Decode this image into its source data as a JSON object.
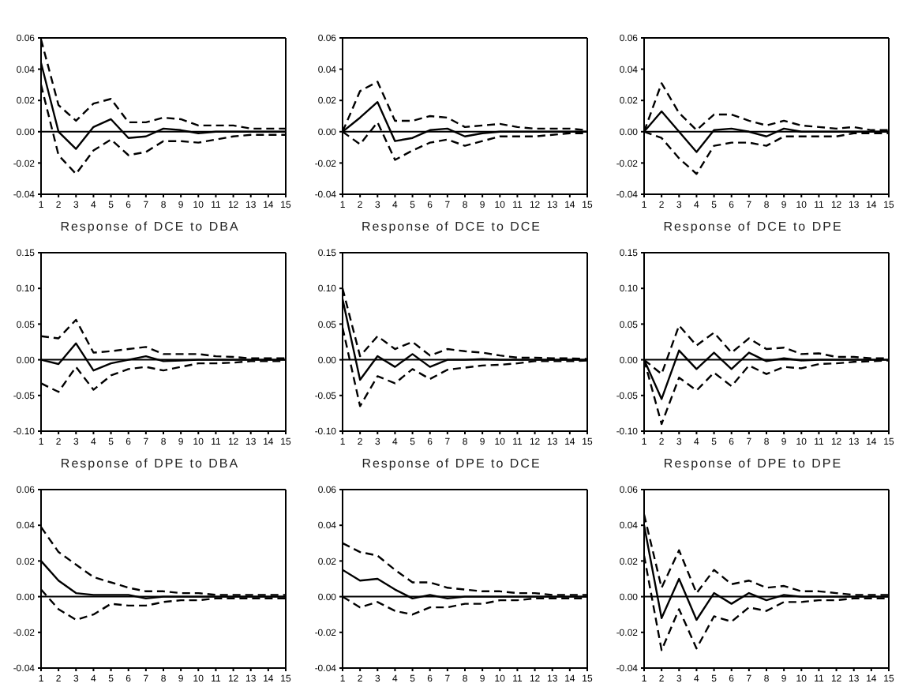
{
  "chart_data": [
    {
      "type": "line",
      "x": [
        1,
        2,
        3,
        4,
        5,
        6,
        7,
        8,
        9,
        10,
        11,
        12,
        13,
        14,
        15
      ],
      "xlim": [
        1,
        15
      ],
      "xticks": [
        1,
        2,
        3,
        4,
        5,
        6,
        7,
        8,
        9,
        10,
        11,
        12,
        13,
        14,
        15
      ],
      "ylim": [
        -0.04,
        0.06
      ],
      "yticks": [
        -0.04,
        -0.02,
        {
          "value": 0,
          "label": "0.00"
        },
        0.02,
        0.04,
        0.06
      ],
      "grid": false,
      "legend": false,
      "ref_lines": [
        {
          "axis": "y",
          "value": 0,
          "color": "#000000"
        }
      ],
      "series": [
        {
          "color": "#000000",
          "line_style": "solid",
          "values": [
            0.044,
            0.0,
            -0.011,
            0.003,
            0.008,
            -0.004,
            -0.003,
            0.002,
            0.001,
            -0.001,
            0,
            0,
            0,
            0,
            0
          ]
        },
        {
          "color": "#000000",
          "line_style": "dashed",
          "values": [
            0.059,
            0.017,
            0.007,
            0.018,
            0.021,
            0.006,
            0.006,
            0.009,
            0.008,
            0.004,
            0.004,
            0.004,
            0.002,
            0.002,
            0.002
          ]
        },
        {
          "color": "#000000",
          "line_style": "dashed",
          "values": [
            0.03,
            -0.015,
            -0.027,
            -0.012,
            -0.005,
            -0.015,
            -0.013,
            -0.006,
            -0.006,
            -0.007,
            -0.005,
            -0.003,
            -0.002,
            -0.002,
            -0.002
          ]
        }
      ]
    },
    {
      "type": "line",
      "x": [
        1,
        2,
        3,
        4,
        5,
        6,
        7,
        8,
        9,
        10,
        11,
        12,
        13,
        14,
        15
      ],
      "xlim": [
        1,
        15
      ],
      "xticks": [
        1,
        2,
        3,
        4,
        5,
        6,
        7,
        8,
        9,
        10,
        11,
        12,
        13,
        14,
        15
      ],
      "ylim": [
        -0.04,
        0.06
      ],
      "yticks": [
        -0.04,
        -0.02,
        {
          "value": 0,
          "label": "0.00"
        },
        0.02,
        0.04,
        0.06
      ],
      "grid": false,
      "legend": false,
      "ref_lines": [
        {
          "axis": "y",
          "value": 0,
          "color": "#000000"
        }
      ],
      "series": [
        {
          "color": "#000000",
          "line_style": "solid",
          "values": [
            0,
            0.009,
            0.019,
            -0.006,
            -0.004,
            0.001,
            0.002,
            -0.003,
            -0.001,
            0,
            0,
            0,
            0,
            0,
            0
          ]
        },
        {
          "color": "#000000",
          "line_style": "dashed",
          "values": [
            0,
            0.026,
            0.032,
            0.007,
            0.007,
            0.01,
            0.009,
            0.003,
            0.004,
            0.005,
            0.003,
            0.002,
            0.002,
            0.002,
            0.001
          ]
        },
        {
          "color": "#000000",
          "line_style": "dashed",
          "values": [
            0,
            -0.008,
            0.006,
            -0.018,
            -0.012,
            -0.007,
            -0.005,
            -0.009,
            -0.006,
            -0.003,
            -0.003,
            -0.003,
            -0.002,
            -0.001,
            -0.001
          ]
        }
      ]
    },
    {
      "type": "line",
      "x": [
        1,
        2,
        3,
        4,
        5,
        6,
        7,
        8,
        9,
        10,
        11,
        12,
        13,
        14,
        15
      ],
      "xlim": [
        1,
        15
      ],
      "xticks": [
        1,
        2,
        3,
        4,
        5,
        6,
        7,
        8,
        9,
        10,
        11,
        12,
        13,
        14,
        15
      ],
      "ylim": [
        -0.04,
        0.06
      ],
      "yticks": [
        -0.04,
        -0.02,
        {
          "value": 0,
          "label": "0.00"
        },
        0.02,
        0.04,
        0.06
      ],
      "grid": false,
      "legend": false,
      "ref_lines": [
        {
          "axis": "y",
          "value": 0,
          "color": "#000000"
        }
      ],
      "series": [
        {
          "color": "#000000",
          "line_style": "solid",
          "values": [
            0,
            0.013,
            0,
            -0.013,
            0.001,
            0.002,
            0,
            -0.003,
            0.002,
            0,
            0,
            0,
            0,
            0,
            0
          ]
        },
        {
          "color": "#000000",
          "line_style": "dashed",
          "values": [
            0,
            0.031,
            0.012,
            0.001,
            0.011,
            0.011,
            0.007,
            0.004,
            0.007,
            0.004,
            0.003,
            0.002,
            0.003,
            0.001,
            0.001
          ]
        },
        {
          "color": "#000000",
          "line_style": "dashed",
          "values": [
            0,
            -0.004,
            -0.017,
            -0.027,
            -0.009,
            -0.007,
            -0.007,
            -0.009,
            -0.003,
            -0.003,
            -0.003,
            -0.003,
            -0.001,
            -0.001,
            -0.001
          ]
        }
      ]
    },
    {
      "type": "line",
      "title": "Response of DCE to DBA",
      "x": [
        1,
        2,
        3,
        4,
        5,
        6,
        7,
        8,
        9,
        10,
        11,
        12,
        13,
        14,
        15
      ],
      "xlim": [
        1,
        15
      ],
      "xticks": [
        1,
        2,
        3,
        4,
        5,
        6,
        7,
        8,
        9,
        10,
        11,
        12,
        13,
        14,
        15
      ],
      "ylim": [
        -0.1,
        0.15
      ],
      "yticks": [
        {
          "value": -0.1,
          "label": "-0.10"
        },
        -0.05,
        {
          "value": 0,
          "label": "0.00"
        },
        0.05,
        {
          "value": 0.1,
          "label": "0.10"
        },
        0.15
      ],
      "grid": false,
      "legend": false,
      "ref_lines": [
        {
          "axis": "y",
          "value": 0,
          "color": "#000000"
        }
      ],
      "series": [
        {
          "color": "#000000",
          "line_style": "solid",
          "values": [
            0,
            -0.006,
            0.023,
            -0.015,
            -0.005,
            0,
            0.005,
            -0.002,
            -0.001,
            0,
            0,
            0,
            0,
            0,
            0
          ]
        },
        {
          "color": "#000000",
          "line_style": "dashed",
          "values": [
            0.033,
            0.03,
            0.056,
            0.01,
            0.012,
            0.015,
            0.018,
            0.008,
            0.008,
            0.008,
            0.005,
            0.004,
            0.002,
            0.002,
            0.002
          ]
        },
        {
          "color": "#000000",
          "line_style": "dashed",
          "values": [
            -0.033,
            -0.045,
            -0.01,
            -0.042,
            -0.022,
            -0.013,
            -0.01,
            -0.015,
            -0.01,
            -0.005,
            -0.005,
            -0.004,
            -0.002,
            -0.002,
            -0.002
          ]
        }
      ]
    },
    {
      "type": "line",
      "title": "Response of DCE to DCE",
      "x": [
        1,
        2,
        3,
        4,
        5,
        6,
        7,
        8,
        9,
        10,
        11,
        12,
        13,
        14,
        15
      ],
      "xlim": [
        1,
        15
      ],
      "xticks": [
        1,
        2,
        3,
        4,
        5,
        6,
        7,
        8,
        9,
        10,
        11,
        12,
        13,
        14,
        15
      ],
      "ylim": [
        -0.1,
        0.15
      ],
      "yticks": [
        {
          "value": -0.1,
          "label": "-0.10"
        },
        -0.05,
        {
          "value": 0,
          "label": "0.00"
        },
        0.05,
        {
          "value": 0.1,
          "label": "0.10"
        },
        0.15
      ],
      "grid": false,
      "legend": false,
      "ref_lines": [
        {
          "axis": "y",
          "value": 0,
          "color": "#000000"
        }
      ],
      "series": [
        {
          "color": "#000000",
          "line_style": "solid",
          "values": [
            0.085,
            -0.028,
            0.005,
            -0.01,
            0.008,
            -0.01,
            0,
            0,
            0.001,
            0,
            0,
            0,
            0,
            0,
            0
          ]
        },
        {
          "color": "#000000",
          "line_style": "dashed",
          "values": [
            0.1,
            0.005,
            0.033,
            0.015,
            0.025,
            0.006,
            0.015,
            0.012,
            0.01,
            0.006,
            0.003,
            0.003,
            0.002,
            0.002,
            0.001
          ]
        },
        {
          "color": "#000000",
          "line_style": "dashed",
          "values": [
            0.045,
            -0.065,
            -0.023,
            -0.033,
            -0.013,
            -0.027,
            -0.014,
            -0.011,
            -0.008,
            -0.007,
            -0.005,
            -0.002,
            -0.002,
            -0.002,
            -0.001
          ]
        }
      ]
    },
    {
      "type": "line",
      "title": "Response of DCE to DPE",
      "x": [
        1,
        2,
        3,
        4,
        5,
        6,
        7,
        8,
        9,
        10,
        11,
        12,
        13,
        14,
        15
      ],
      "xlim": [
        1,
        15
      ],
      "xticks": [
        1,
        2,
        3,
        4,
        5,
        6,
        7,
        8,
        9,
        10,
        11,
        12,
        13,
        14,
        15
      ],
      "ylim": [
        -0.1,
        0.15
      ],
      "yticks": [
        {
          "value": -0.1,
          "label": "-0.10"
        },
        -0.05,
        {
          "value": 0,
          "label": "0.00"
        },
        0.05,
        {
          "value": 0.1,
          "label": "0.10"
        },
        0.15
      ],
      "grid": false,
      "legend": false,
      "ref_lines": [
        {
          "axis": "y",
          "value": 0,
          "color": "#000000"
        }
      ],
      "series": [
        {
          "color": "#000000",
          "line_style": "solid",
          "values": [
            0,
            -0.055,
            0.013,
            -0.013,
            0.01,
            -0.013,
            0.01,
            -0.002,
            0.002,
            -0.001,
            0,
            0,
            0,
            0,
            0
          ]
        },
        {
          "color": "#000000",
          "line_style": "dashed",
          "values": [
            0,
            -0.02,
            0.048,
            0.02,
            0.038,
            0.01,
            0.03,
            0.015,
            0.017,
            0.008,
            0.009,
            0.004,
            0.004,
            0.002,
            0.002
          ]
        },
        {
          "color": "#000000",
          "line_style": "dashed",
          "values": [
            0,
            -0.09,
            -0.025,
            -0.043,
            -0.018,
            -0.037,
            -0.008,
            -0.02,
            -0.01,
            -0.012,
            -0.006,
            -0.005,
            -0.003,
            -0.002,
            -0.001
          ]
        }
      ]
    },
    {
      "type": "line",
      "title": "Response of DPE to DBA",
      "x": [
        1,
        2,
        3,
        4,
        5,
        6,
        7,
        8,
        9,
        10,
        11,
        12,
        13,
        14,
        15
      ],
      "xlim": [
        1,
        15
      ],
      "xticks": [
        1,
        2,
        3,
        4,
        5,
        6,
        7,
        8,
        9,
        10,
        11,
        12,
        13,
        14,
        15
      ],
      "ylim": [
        -0.04,
        0.06
      ],
      "yticks": [
        -0.04,
        -0.02,
        {
          "value": 0,
          "label": "0.00"
        },
        0.02,
        0.04,
        0.06
      ],
      "grid": false,
      "legend": false,
      "ref_lines": [
        {
          "axis": "y",
          "value": 0,
          "color": "#000000"
        }
      ],
      "series": [
        {
          "color": "#000000",
          "line_style": "solid",
          "values": [
            0.02,
            0.009,
            0.002,
            0.001,
            0.001,
            0.001,
            -0.001,
            0,
            0,
            0,
            0,
            0,
            0,
            0,
            0
          ]
        },
        {
          "color": "#000000",
          "line_style": "dashed",
          "values": [
            0.039,
            0.025,
            0.018,
            0.011,
            0.008,
            0.005,
            0.003,
            0.003,
            0.002,
            0.002,
            0.001,
            0.001,
            0.001,
            0.001,
            0.001
          ]
        },
        {
          "color": "#000000",
          "line_style": "dashed",
          "values": [
            0.004,
            -0.007,
            -0.013,
            -0.01,
            -0.004,
            -0.005,
            -0.005,
            -0.003,
            -0.002,
            -0.002,
            -0.001,
            -0.001,
            -0.001,
            -0.001,
            -0.001
          ]
        }
      ]
    },
    {
      "type": "line",
      "title": "Response of DPE to DCE",
      "x": [
        1,
        2,
        3,
        4,
        5,
        6,
        7,
        8,
        9,
        10,
        11,
        12,
        13,
        14,
        15
      ],
      "xlim": [
        1,
        15
      ],
      "xticks": [
        1,
        2,
        3,
        4,
        5,
        6,
        7,
        8,
        9,
        10,
        11,
        12,
        13,
        14,
        15
      ],
      "ylim": [
        -0.04,
        0.06
      ],
      "yticks": [
        -0.04,
        -0.02,
        {
          "value": 0,
          "label": "0.00"
        },
        0.02,
        0.04,
        0.06
      ],
      "grid": false,
      "legend": false,
      "ref_lines": [
        {
          "axis": "y",
          "value": 0,
          "color": "#000000"
        }
      ],
      "series": [
        {
          "color": "#000000",
          "line_style": "solid",
          "values": [
            0.015,
            0.009,
            0.01,
            0.004,
            -0.001,
            0.001,
            -0.001,
            0,
            0,
            0,
            0,
            0,
            0,
            0,
            0
          ]
        },
        {
          "color": "#000000",
          "line_style": "dashed",
          "values": [
            0.03,
            0.025,
            0.023,
            0.015,
            0.008,
            0.008,
            0.005,
            0.004,
            0.003,
            0.003,
            0.002,
            0.002,
            0.001,
            0.001,
            0.001
          ]
        },
        {
          "color": "#000000",
          "line_style": "dashed",
          "values": [
            0,
            -0.006,
            -0.003,
            -0.008,
            -0.01,
            -0.006,
            -0.006,
            -0.004,
            -0.004,
            -0.002,
            -0.002,
            -0.001,
            -0.001,
            -0.001,
            -0.001
          ]
        }
      ]
    },
    {
      "type": "line",
      "title": "Response of DPE to DPE",
      "x": [
        1,
        2,
        3,
        4,
        5,
        6,
        7,
        8,
        9,
        10,
        11,
        12,
        13,
        14,
        15
      ],
      "xlim": [
        1,
        15
      ],
      "xticks": [
        1,
        2,
        3,
        4,
        5,
        6,
        7,
        8,
        9,
        10,
        11,
        12,
        13,
        14,
        15
      ],
      "ylim": [
        -0.04,
        0.06
      ],
      "yticks": [
        -0.04,
        -0.02,
        {
          "value": 0,
          "label": "0.00"
        },
        0.02,
        0.04,
        0.06
      ],
      "grid": false,
      "legend": false,
      "ref_lines": [
        {
          "axis": "y",
          "value": 0,
          "color": "#000000"
        }
      ],
      "series": [
        {
          "color": "#000000",
          "line_style": "solid",
          "values": [
            0.04,
            -0.012,
            0.01,
            -0.013,
            0.002,
            -0.004,
            0.002,
            -0.002,
            0.001,
            0,
            0,
            0,
            0,
            0,
            0
          ]
        },
        {
          "color": "#000000",
          "line_style": "dashed",
          "values": [
            0.046,
            0.005,
            0.026,
            0.002,
            0.015,
            0.007,
            0.009,
            0.005,
            0.006,
            0.003,
            0.003,
            0.002,
            0.001,
            0.001,
            0.001
          ]
        },
        {
          "color": "#000000",
          "line_style": "dashed",
          "values": [
            0.023,
            -0.03,
            -0.007,
            -0.029,
            -0.011,
            -0.014,
            -0.006,
            -0.008,
            -0.003,
            -0.003,
            -0.002,
            -0.002,
            -0.001,
            -0.001,
            -0.001
          ]
        }
      ]
    }
  ]
}
